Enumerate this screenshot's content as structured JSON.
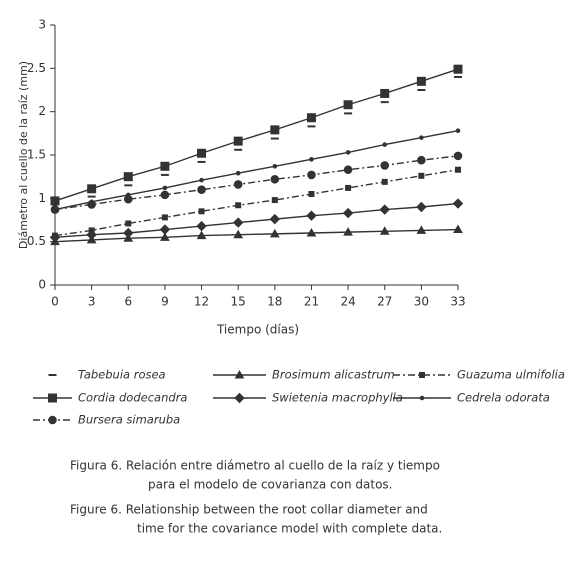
{
  "chart_data": {
    "type": "line",
    "x_label": "Tiempo (días)",
    "y_label": "Diámetro al cuello de la raíz (mm)",
    "x": [
      0,
      3,
      6,
      9,
      12,
      15,
      18,
      21,
      24,
      27,
      30,
      33
    ],
    "xlim": [
      0,
      33
    ],
    "xticks": [
      0,
      3,
      6,
      9,
      12,
      15,
      18,
      21,
      24,
      27,
      30,
      33
    ],
    "ylim": [
      0,
      3
    ],
    "yticks": [
      0,
      0.5,
      1,
      1.5,
      2,
      2.5,
      3
    ],
    "grid": false,
    "series": [
      {
        "name": "Tabebuia rosea",
        "color": "#333333",
        "marker": "dash",
        "line": "none",
        "values": [
          0.93,
          1.02,
          1.15,
          1.27,
          1.42,
          1.56,
          1.69,
          1.83,
          1.98,
          2.11,
          2.25,
          2.4
        ]
      },
      {
        "name": "Brosimum alicastrum",
        "color": "#333333",
        "marker": "triangle",
        "line": "solid",
        "values": [
          0.5,
          0.52,
          0.54,
          0.55,
          0.57,
          0.58,
          0.59,
          0.6,
          0.61,
          0.62,
          0.63,
          0.64
        ]
      },
      {
        "name": "Guazuma ulmifolia",
        "color": "#333333",
        "marker": "small-square",
        "line": "dashdot",
        "values": [
          0.57,
          0.63,
          0.71,
          0.78,
          0.85,
          0.92,
          0.98,
          1.05,
          1.12,
          1.19,
          1.26,
          1.33
        ]
      },
      {
        "name": "Cordia dodecandra",
        "color": "#333333",
        "marker": "square",
        "line": "solid",
        "values": [
          0.97,
          1.11,
          1.25,
          1.37,
          1.52,
          1.66,
          1.79,
          1.93,
          2.08,
          2.21,
          2.35,
          2.49
        ]
      },
      {
        "name": "Swietenia macrophylla",
        "color": "#333333",
        "marker": "diamond",
        "line": "solid",
        "values": [
          0.55,
          0.58,
          0.6,
          0.64,
          0.68,
          0.72,
          0.76,
          0.8,
          0.83,
          0.87,
          0.9,
          0.94
        ]
      },
      {
        "name": "Cedrela odorata",
        "color": "#333333",
        "marker": "dot",
        "line": "solid",
        "values": [
          0.87,
          0.96,
          1.04,
          1.12,
          1.21,
          1.29,
          1.37,
          1.45,
          1.53,
          1.62,
          1.7,
          1.78
        ]
      },
      {
        "name": "Bursera simaruba",
        "color": "#333333",
        "marker": "circle",
        "line": "dashdot",
        "values": [
          0.87,
          0.93,
          0.99,
          1.04,
          1.1,
          1.16,
          1.22,
          1.27,
          1.33,
          1.38,
          1.44,
          1.49
        ]
      }
    ],
    "caption": [
      "Figura 6. Relación entre diámetro al cuello de la raíz y tiempo",
      "para el modelo de covarianza con datos.",
      "Figure 6. Relationship between the root collar diameter and",
      "time for the covariance model with complete data."
    ]
  }
}
